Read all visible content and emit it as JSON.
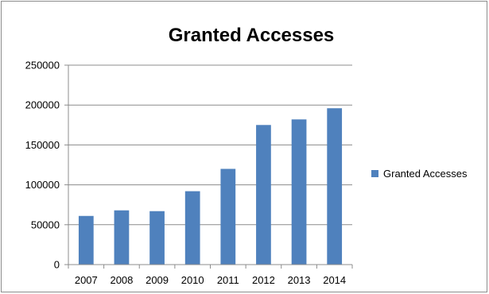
{
  "chart_data": {
    "type": "bar",
    "title": "Granted Accesses",
    "xlabel": "",
    "ylabel": "",
    "categories": [
      "2007",
      "2008",
      "2009",
      "2010",
      "2011",
      "2012",
      "2013",
      "2014"
    ],
    "series": [
      {
        "name": "Granted Accesses",
        "values": [
          61000,
          68000,
          67000,
          92000,
          120000,
          175000,
          182000,
          196000
        ],
        "color": "#4f81bd"
      }
    ],
    "ylim": [
      0,
      250000
    ],
    "yticks": [
      "0",
      "50000",
      "100000",
      "150000",
      "200000",
      "250000"
    ],
    "grid": true,
    "legend_position": "right"
  }
}
